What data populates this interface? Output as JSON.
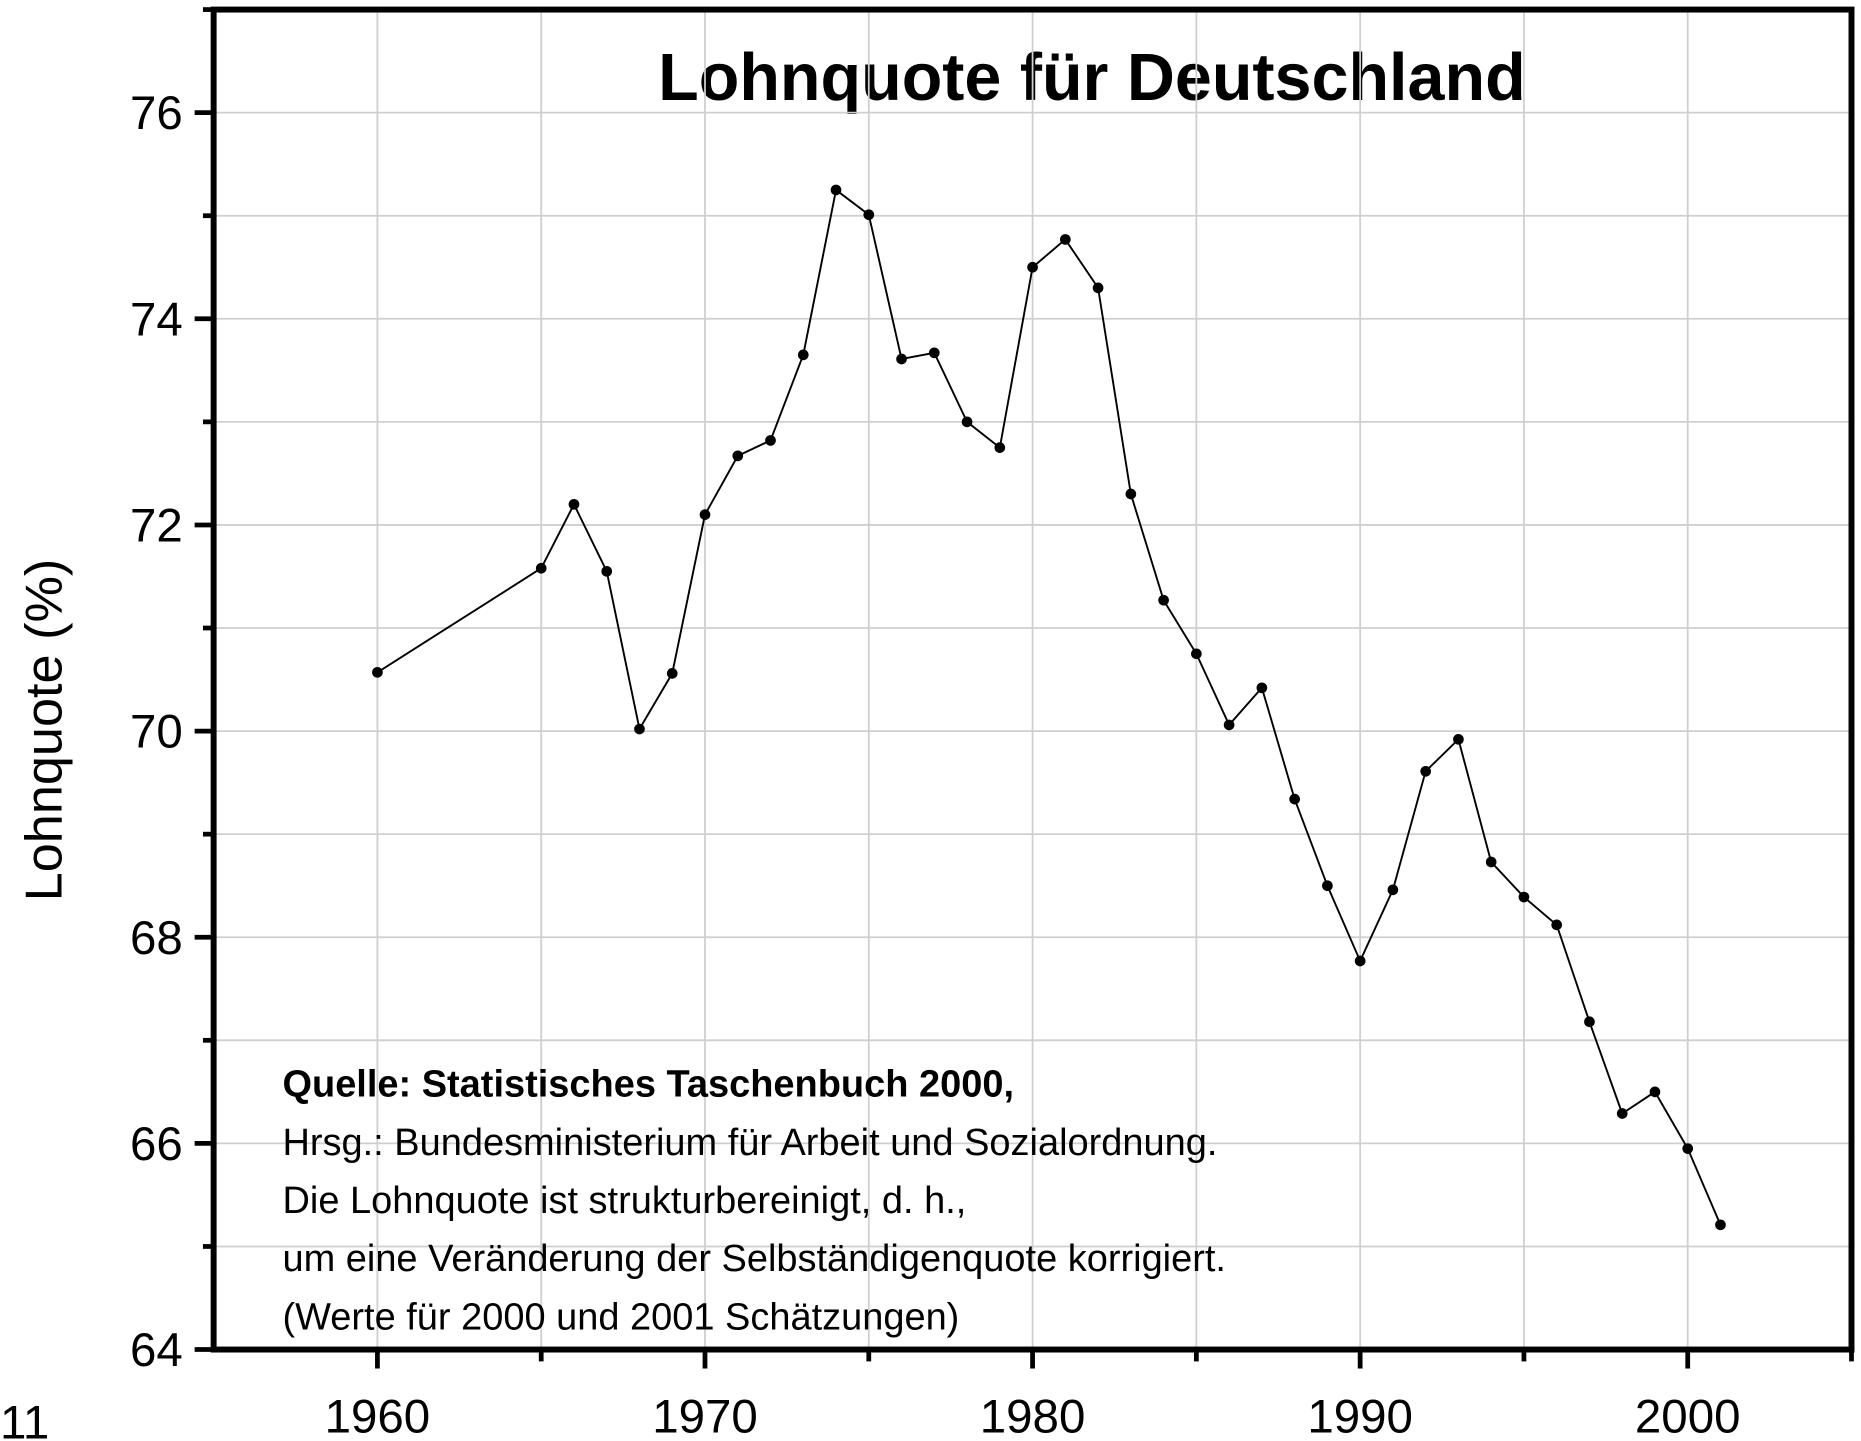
{
  "chart_data": {
    "type": "line",
    "title": "Lohnquote für Deutschland",
    "y_label": "Lohnquote (%)",
    "annotation": [
      "Quelle: Statistisches Taschenbuch 2000,",
      "Hrsg.: Bundesministerium für Arbeit und Sozialordnung.",
      "Die Lohnquote ist strukturbereinigt, d. h.,",
      "um eine Veränderung der Selbständigenquote korrigiert.",
      "(Werte für 2000 und 2001 Schätzungen)"
    ],
    "page_number": "11",
    "x": [
      1960,
      1965,
      1966,
      1967,
      1968,
      1969,
      1970,
      1971,
      1972,
      1973,
      1974,
      1975,
      1976,
      1977,
      1978,
      1979,
      1980,
      1981,
      1982,
      1983,
      1984,
      1985,
      1986,
      1987,
      1988,
      1989,
      1990,
      1991,
      1992,
      1993,
      1994,
      1995,
      1996,
      1997,
      1998,
      1999,
      2000,
      2001
    ],
    "series": [
      {
        "name": "Lohnquote",
        "color": "#000000",
        "values": [
          70.57,
          71.58,
          72.2,
          71.55,
          70.02,
          70.56,
          72.1,
          72.67,
          72.82,
          73.65,
          75.25,
          75.01,
          73.61,
          73.67,
          73.0,
          72.75,
          74.5,
          74.77,
          74.3,
          72.3,
          71.27,
          70.75,
          70.06,
          70.42,
          69.34,
          68.5,
          67.77,
          68.46,
          69.61,
          69.92,
          68.73,
          68.39,
          68.12,
          67.18,
          66.29,
          66.5,
          65.95,
          65.21
        ]
      }
    ],
    "xlim": [
      1955,
      2005
    ],
    "xticks": [
      1960,
      1970,
      1980,
      1990,
      2000
    ],
    "x_minor_ticks": [
      1965,
      1975,
      1985,
      1995,
      2005
    ],
    "ylim": [
      64,
      77
    ],
    "yticks": [
      64,
      66,
      68,
      70,
      72,
      74,
      76
    ],
    "y_minor_ticks": [
      65,
      67,
      69,
      71,
      73,
      75,
      77
    ],
    "grid": true
  }
}
